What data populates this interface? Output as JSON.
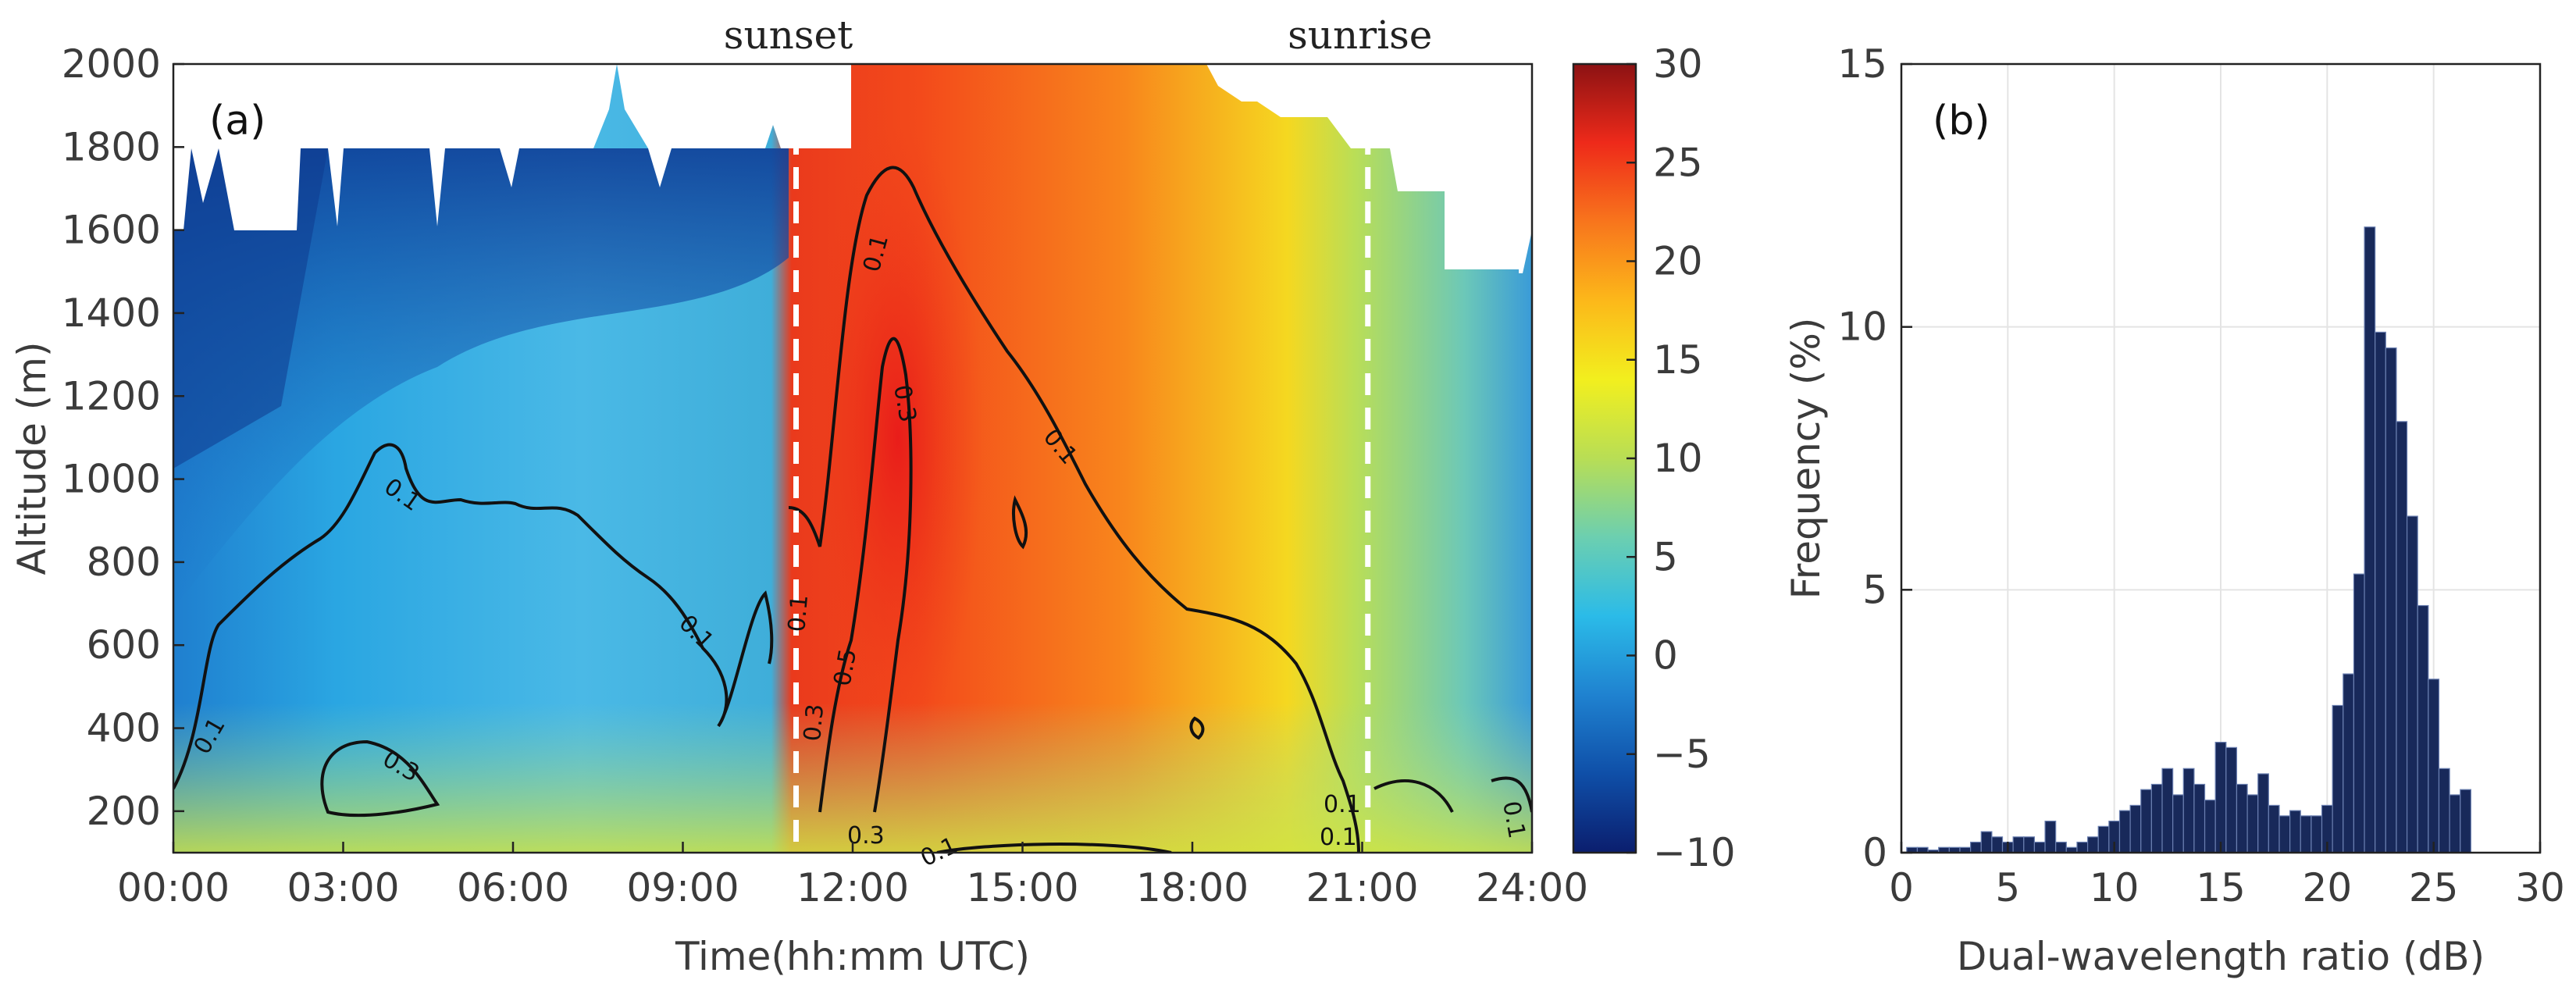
{
  "chart_data": [
    {
      "panel": "(a)",
      "type": "heatmap",
      "xlabel": "Time(hh:mm UTC)",
      "ylabel": "Altitude (m)",
      "xlim": [
        0,
        24
      ],
      "ylim": [
        100,
        2000
      ],
      "x_ticks": [
        "00:00",
        "03:00",
        "06:00",
        "09:00",
        "12:00",
        "15:00",
        "18:00",
        "21:00",
        "24:00"
      ],
      "y_ticks": [
        "200",
        "400",
        "600",
        "800",
        "1000",
        "1200",
        "1400",
        "1600",
        "1800",
        "2000"
      ],
      "annotations": [
        "sunset",
        "sunrise"
      ],
      "sunset_hour": 11.0,
      "sunrise_hour": 21.1,
      "colorbar": {
        "range": [
          -10,
          30
        ],
        "ticks": [
          "30",
          "25",
          "20",
          "15",
          "10",
          "5",
          "0",
          "−5",
          "−10"
        ],
        "colors": [
          "#0b1e6e",
          "#0f4fa8",
          "#1f82d0",
          "#2bbbe8",
          "#6ccfb0",
          "#b8de55",
          "#f2ef1e",
          "#fcb81a",
          "#f8751c",
          "#ee2a1a",
          "#8c1213"
        ]
      },
      "contour_levels": [
        "0.1",
        "0.3",
        "0.5"
      ]
    },
    {
      "panel": "(b)",
      "type": "bar",
      "xlabel": "Dual-wavelength ratio (dB)",
      "ylabel": "Frequency (%)",
      "xlim": [
        0,
        30
      ],
      "ylim": [
        0,
        15
      ],
      "x_ticks": [
        "0",
        "5",
        "10",
        "15",
        "20",
        "25",
        "30"
      ],
      "y_ticks": [
        "0",
        "5",
        "10",
        "15"
      ],
      "bin_width": 0.5,
      "bar_color": "#18295a",
      "bins": [
        0.5,
        1.0,
        1.5,
        2.0,
        2.5,
        3.0,
        3.5,
        4.0,
        4.5,
        5.0,
        5.5,
        6.0,
        6.5,
        7.0,
        7.5,
        8.0,
        8.5,
        9.0,
        9.5,
        10.0,
        10.5,
        11.0,
        11.5,
        12.0,
        12.5,
        13.0,
        13.5,
        14.0,
        14.5,
        15.0,
        15.5,
        16.0,
        16.5,
        17.0,
        17.5,
        18.0,
        18.5,
        19.0,
        19.5,
        20.0,
        20.5,
        21.0,
        21.5,
        22.0,
        22.5,
        23.0,
        23.5,
        24.0,
        24.5,
        25.0,
        25.5,
        26.0,
        26.5
      ],
      "values": [
        0.1,
        0.1,
        0.05,
        0.1,
        0.1,
        0.1,
        0.2,
        0.4,
        0.3,
        0.2,
        0.3,
        0.3,
        0.2,
        0.6,
        0.2,
        0.1,
        0.2,
        0.3,
        0.5,
        0.6,
        0.8,
        0.9,
        1.2,
        1.3,
        1.6,
        1.1,
        1.6,
        1.3,
        1.0,
        2.1,
        2.0,
        1.3,
        1.1,
        1.5,
        0.9,
        0.7,
        0.8,
        0.7,
        0.7,
        0.9,
        2.8,
        3.4,
        5.3,
        11.9,
        9.9,
        9.6,
        8.2,
        6.4,
        4.7,
        3.3,
        1.6,
        1.1,
        1.2
      ]
    }
  ]
}
